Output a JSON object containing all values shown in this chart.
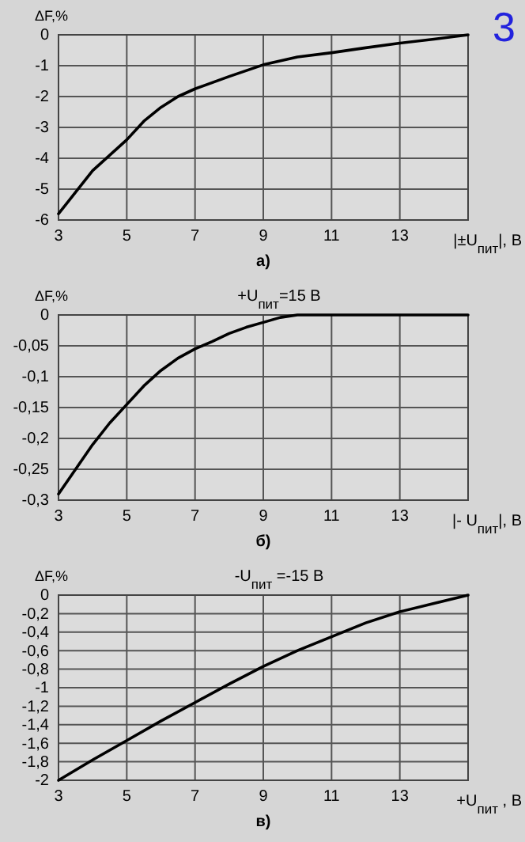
{
  "chart_data": [
    {
      "type": "line",
      "ylabel": "ΔF,%",
      "xlabel": "|±U$_{пит}$|, В",
      "annotations": [
        "а)",
        "3"
      ],
      "x": [
        3,
        3.5,
        4,
        4.5,
        5,
        5.5,
        6,
        6.5,
        7,
        8,
        9,
        10,
        11,
        12,
        13,
        14,
        15
      ],
      "series": [
        {
          "color": "#000000",
          "values": [
            -5.8,
            -5.1,
            -4.4,
            -3.9,
            -3.4,
            -2.8,
            -2.35,
            -2.0,
            -1.75,
            -1.35,
            -0.97,
            -0.72,
            -0.58,
            -0.42,
            -0.27,
            -0.14,
            0
          ]
        }
      ],
      "xlim": [
        3,
        15
      ],
      "xticks": [
        3,
        5,
        7,
        9,
        11,
        13
      ],
      "ylim": [
        -6,
        0
      ],
      "yticks": [
        -6,
        -5,
        -4,
        -3,
        -2,
        -1,
        0
      ],
      "grid": true,
      "marker": "none",
      "line_style": "solid"
    },
    {
      "type": "line",
      "title": "+U$_{пит}$=15 В",
      "ylabel": "ΔF,%",
      "xlabel": "|- U$_{пит}$|, В",
      "annotations": [
        "б)"
      ],
      "x": [
        3,
        3.5,
        4,
        4.5,
        5,
        5.5,
        6,
        6.5,
        7,
        7.5,
        8,
        8.5,
        9,
        9.5,
        10,
        11,
        13,
        15
      ],
      "series": [
        {
          "color": "#000000",
          "values": [
            -0.29,
            -0.25,
            -0.21,
            -0.175,
            -0.145,
            -0.115,
            -0.09,
            -0.07,
            -0.055,
            -0.043,
            -0.03,
            -0.02,
            -0.012,
            -0.004,
            0,
            0,
            0,
            0
          ]
        }
      ],
      "xlim": [
        3,
        15
      ],
      "xticks": [
        3,
        5,
        7,
        9,
        11,
        13
      ],
      "ylim": [
        -0.3,
        0
      ],
      "yticks": [
        {
          "value": -0.3,
          "label": "-0,3"
        },
        {
          "value": -0.25,
          "label": "-0,25"
        },
        {
          "value": -0.2,
          "label": "-0,2"
        },
        {
          "value": -0.15,
          "label": "-0,15"
        },
        {
          "value": -0.1,
          "label": "-0,1"
        },
        {
          "value": -0.05,
          "label": "-0,05"
        },
        0
      ],
      "grid": true,
      "marker": "none",
      "line_style": "solid"
    },
    {
      "type": "line",
      "title": "-U$_{пит}$ =-15 В",
      "ylabel": "ΔF,%",
      "xlabel": "+U$_{пит}$ , В",
      "annotations": [
        "в)"
      ],
      "x": [
        3,
        4,
        5,
        6,
        7,
        8,
        9,
        10,
        11,
        12,
        13,
        14,
        15
      ],
      "series": [
        {
          "color": "#000000",
          "values": [
            -2.0,
            -1.78,
            -1.57,
            -1.36,
            -1.16,
            -0.96,
            -0.77,
            -0.6,
            -0.45,
            -0.3,
            -0.18,
            -0.09,
            0
          ]
        }
      ],
      "xlim": [
        3,
        15
      ],
      "xticks": [
        3,
        5,
        7,
        9,
        11,
        13
      ],
      "ylim": [
        -2,
        0
      ],
      "yticks": [
        -2,
        {
          "value": -1.8,
          "label": "-1,8"
        },
        {
          "value": -1.6,
          "label": "-1,6"
        },
        {
          "value": -1.4,
          "label": "-1,4"
        },
        {
          "value": -1.2,
          "label": "-1,2"
        },
        -1,
        {
          "value": -0.8,
          "label": "-0,8"
        },
        {
          "value": -0.6,
          "label": "-0,6"
        },
        {
          "value": -0.4,
          "label": "-0,4"
        },
        {
          "value": -0.2,
          "label": "-0,2"
        },
        0
      ],
      "grid": true,
      "marker": "none",
      "line_style": "solid"
    }
  ]
}
